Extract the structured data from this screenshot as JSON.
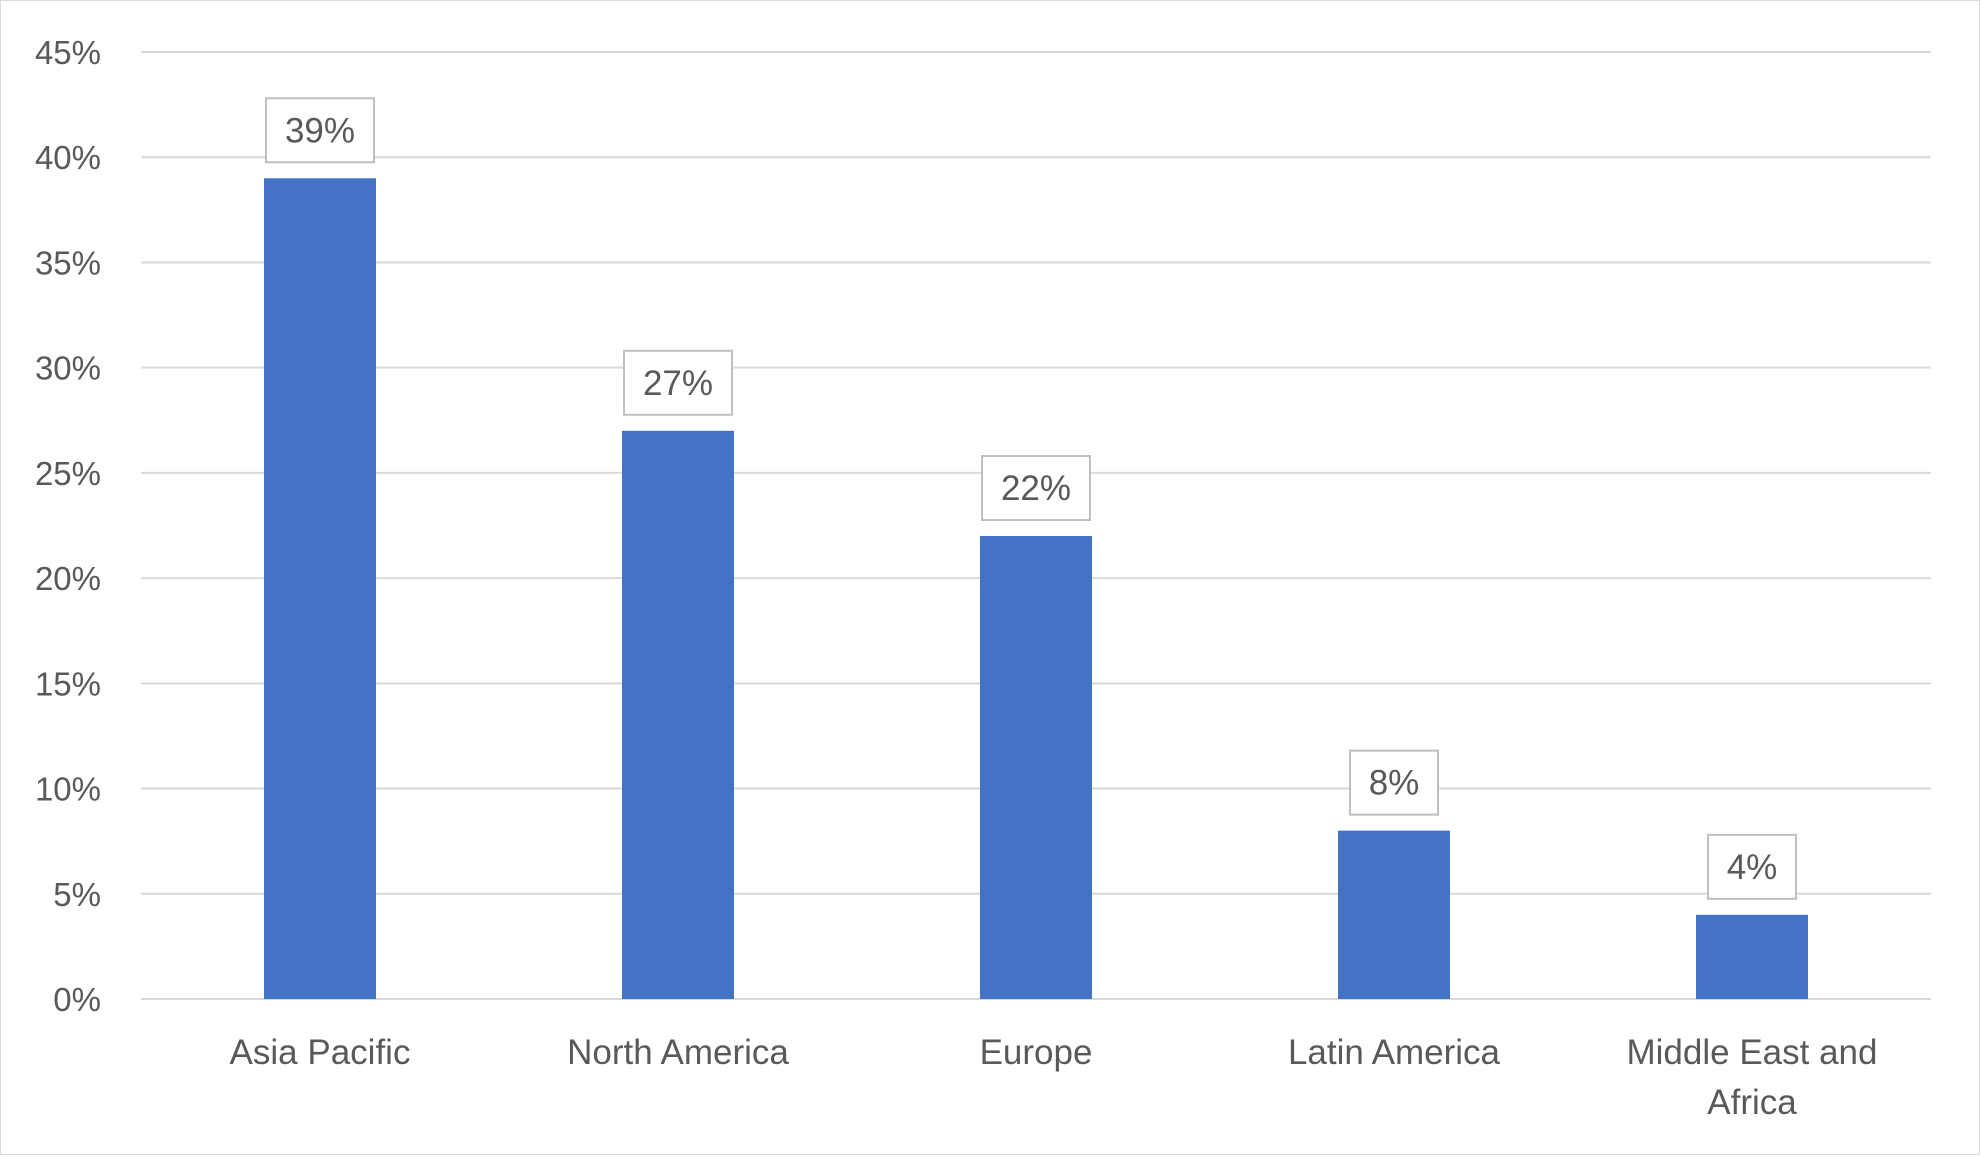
{
  "chart_data": {
    "type": "bar",
    "title": "",
    "xlabel": "",
    "ylabel": "",
    "categories": [
      "Asia Pacific",
      "North America",
      "Europe",
      "Latin America",
      "Middle East and Africa"
    ],
    "category_lines": [
      [
        "Asia Pacific"
      ],
      [
        "North America"
      ],
      [
        "Europe"
      ],
      [
        "Latin America"
      ],
      [
        "Middle East and",
        "Africa"
      ]
    ],
    "values": [
      39,
      27,
      22,
      8,
      4
    ],
    "data_labels": [
      "39%",
      "27%",
      "22%",
      "8%",
      "4%"
    ],
    "ylim": [
      0,
      45
    ],
    "yticks": [
      0,
      5,
      10,
      15,
      20,
      25,
      30,
      35,
      40,
      45
    ],
    "ytick_labels": [
      "0%",
      "5%",
      "10%",
      "15%",
      "20%",
      "25%",
      "30%",
      "35%",
      "40%",
      "45%"
    ],
    "grid": true,
    "legend": "none",
    "bar_color": "#4472c4",
    "gridline_color": "#d9d9d9",
    "text_color": "#595959",
    "label_box_border_color": "#bfbfbf"
  }
}
